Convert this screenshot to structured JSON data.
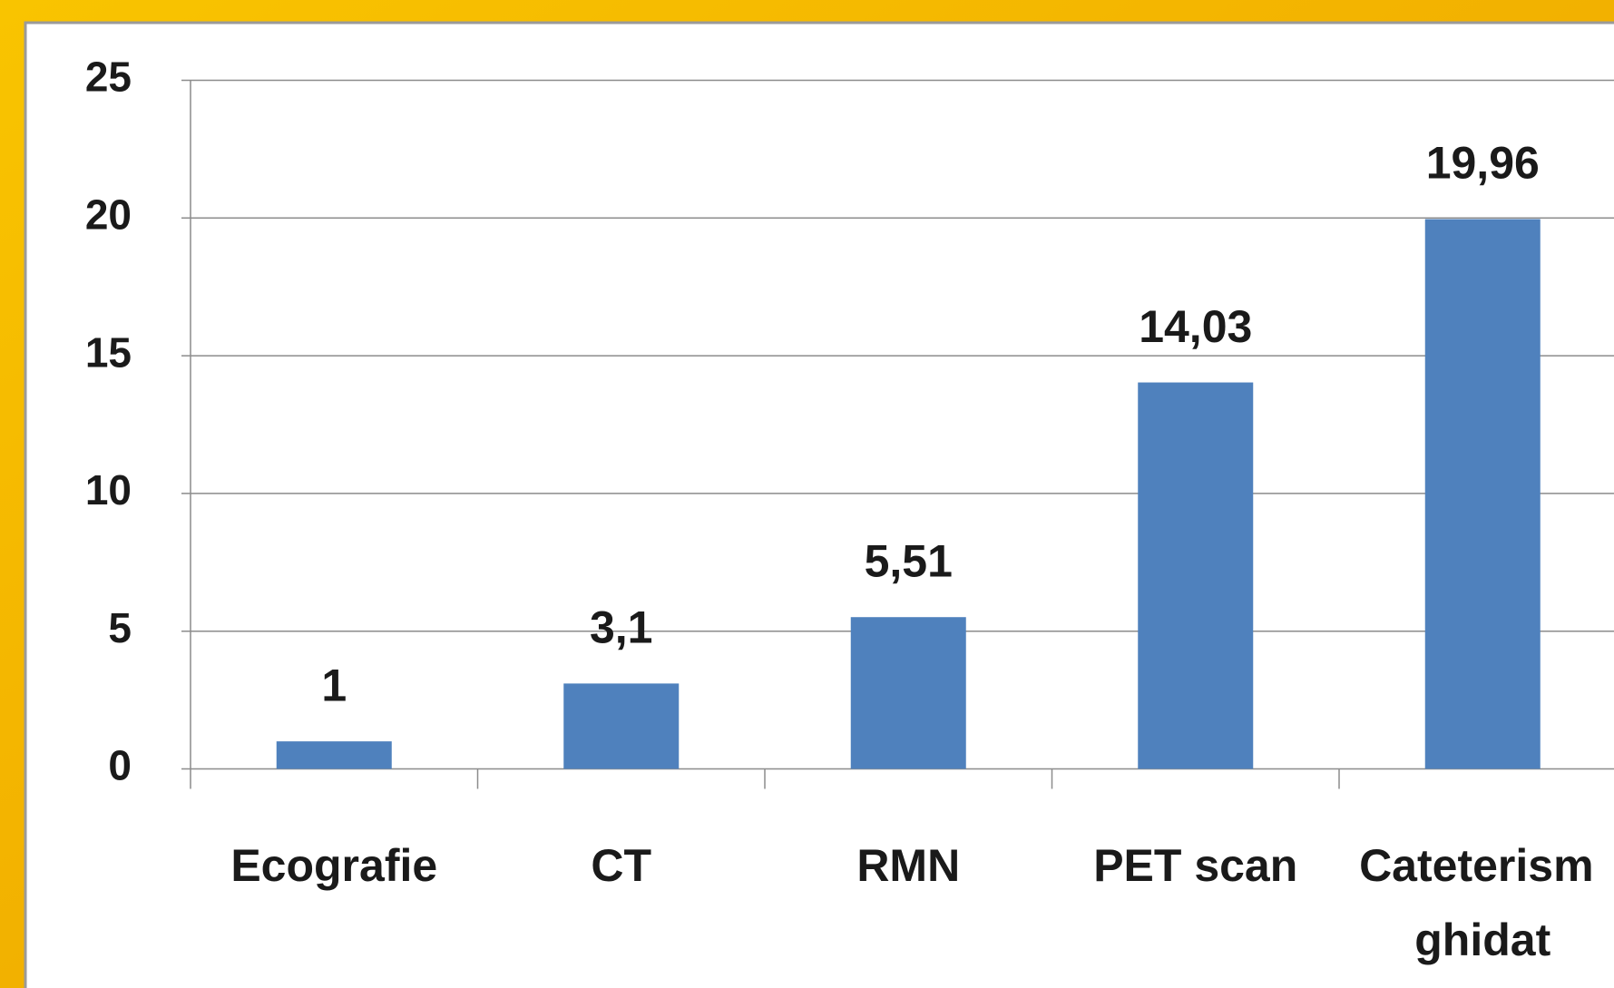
{
  "chart_data": {
    "type": "bar",
    "categories": [
      "Ecografie",
      "CT",
      "RMN",
      "PET scan",
      "Cateterism ghidat"
    ],
    "values": [
      1,
      3.1,
      5.51,
      14.03,
      19.96
    ],
    "value_labels": [
      "1",
      "3,1",
      "5,51",
      "14,03",
      "19,96"
    ],
    "color": "#4f81bd",
    "ylim": [
      0,
      25
    ],
    "yticks": [
      0,
      5,
      10,
      15,
      20,
      25
    ],
    "grid": true
  }
}
